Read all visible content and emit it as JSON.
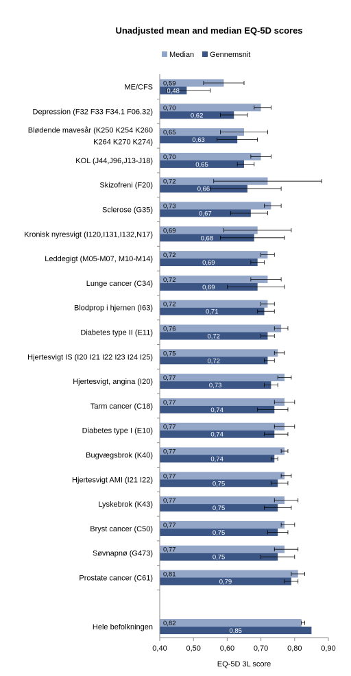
{
  "chart_data": {
    "type": "bar",
    "orientation": "horizontal",
    "title": "Unadjusted mean and median EQ-5D scores",
    "xlabel": "EQ-5D 3L score",
    "ylabel": "",
    "xlim": [
      0.4,
      0.9
    ],
    "x_ticks": [
      "0,40",
      "0,50",
      "0,60",
      "0,70",
      "0,80",
      "0,90"
    ],
    "grid": false,
    "legend_position": "top",
    "categories": [
      [
        "ME/CFS"
      ],
      [
        "Depression (F32 F33 F34.1 F06.32)"
      ],
      [
        "Blødende mavesår  (K250 K254 K260",
        "K264 K270 K274)"
      ],
      [
        "KOL (J44,J96,J13-J18)"
      ],
      [
        "Skizofreni (F20)"
      ],
      [
        "Sclerose (G35)"
      ],
      [
        "Kronisk nyresvigt (I120,I131,I132,N17)"
      ],
      [
        "Leddegigt (M05-M07, M10-M14)"
      ],
      [
        "Lunge cancer (C34)"
      ],
      [
        "Blodprop i hjernen (I63)"
      ],
      [
        "Diabetes type II (E11)"
      ],
      [
        "Hjertesvigt IS (I20 I21 I22 I23 I24 I25)"
      ],
      [
        "Hjertesvigt, angina (I20)"
      ],
      [
        "Tarm cancer (C18)"
      ],
      [
        "Diabetes type I (E10)"
      ],
      [
        "Bugvægsbrok (K40)"
      ],
      [
        "Hjertesvigt AMI  (I21 I22)"
      ],
      [
        "Lyskebrok (K43)"
      ],
      [
        "Bryst cancer (C50)"
      ],
      [
        "Søvnapnø  (G473)"
      ],
      [
        "Prostate cancer (C61)"
      ],
      [
        "Hele befolkningen"
      ]
    ],
    "series": [
      {
        "name": "Median",
        "color": "#93a6c8",
        "label_color": "#000000",
        "values": [
          0.59,
          0.7,
          0.65,
          0.7,
          0.72,
          0.73,
          0.69,
          0.72,
          0.72,
          0.72,
          0.76,
          0.75,
          0.77,
          0.77,
          0.77,
          0.77,
          0.77,
          0.77,
          0.77,
          0.77,
          0.81,
          0.82
        ],
        "labels": [
          "0,59",
          "0,70",
          "0,65",
          "0,70",
          "0,72",
          "0,73",
          "0,69",
          "0,72",
          "0,72",
          "0,72",
          "0,76",
          "0,75",
          "0,77",
          "0,77",
          "0,77",
          "0,77",
          "0,77",
          "0,77",
          "0,77",
          "0,77",
          "0,81",
          "0,82"
        ],
        "error_bars": [
          [
            0.53,
            0.65
          ],
          [
            0.68,
            0.73
          ],
          [
            0.58,
            0.72
          ],
          [
            0.67,
            0.73
          ],
          [
            0.56,
            0.88
          ],
          [
            0.71,
            0.76
          ],
          [
            0.59,
            0.79
          ],
          [
            0.7,
            0.74
          ],
          [
            0.67,
            0.76
          ],
          [
            0.7,
            0.74
          ],
          [
            0.74,
            0.78
          ],
          [
            0.74,
            0.77
          ],
          [
            0.75,
            0.79
          ],
          [
            0.74,
            0.8
          ],
          [
            0.74,
            0.8
          ],
          [
            0.76,
            0.78
          ],
          [
            0.76,
            0.79
          ],
          [
            0.74,
            0.81
          ],
          [
            0.76,
            0.8
          ],
          [
            0.74,
            0.81
          ],
          [
            0.79,
            0.83
          ],
          [
            0.82,
            0.83
          ]
        ]
      },
      {
        "name": "Gennemsnit",
        "color": "#3b5685",
        "label_color": "#ffffff",
        "values": [
          0.48,
          0.62,
          0.63,
          0.65,
          0.66,
          0.67,
          0.68,
          0.69,
          0.69,
          0.71,
          0.72,
          0.72,
          0.73,
          0.74,
          0.74,
          0.74,
          0.75,
          0.75,
          0.75,
          0.75,
          0.79,
          0.85
        ],
        "labels": [
          "0,48",
          "0,62",
          "0,63",
          "0,65",
          "0,66",
          "0,67",
          "0,68",
          "0,69",
          "0,69",
          "0,71",
          "0,72",
          "0,72",
          "0,73",
          "0,74",
          "0,74",
          "0,74",
          "0,75",
          "0,75",
          "0,75",
          "0,75",
          "0,79",
          "0,85"
        ],
        "error_bars": [
          [
            0.42,
            0.55
          ],
          [
            0.58,
            0.66
          ],
          [
            0.57,
            0.69
          ],
          [
            0.63,
            0.68
          ],
          [
            0.55,
            0.76
          ],
          [
            0.61,
            0.72
          ],
          [
            0.58,
            0.77
          ],
          [
            0.67,
            0.71
          ],
          [
            0.6,
            0.77
          ],
          [
            0.69,
            0.74
          ],
          [
            0.7,
            0.74
          ],
          [
            0.71,
            0.74
          ],
          [
            0.71,
            0.75
          ],
          [
            0.69,
            0.78
          ],
          [
            0.71,
            0.78
          ],
          [
            0.73,
            0.75
          ],
          [
            0.73,
            0.78
          ],
          [
            0.71,
            0.79
          ],
          [
            0.72,
            0.78
          ],
          [
            0.7,
            0.8
          ],
          [
            0.77,
            0.81
          ],
          [
            0.85,
            0.85
          ]
        ]
      }
    ]
  }
}
